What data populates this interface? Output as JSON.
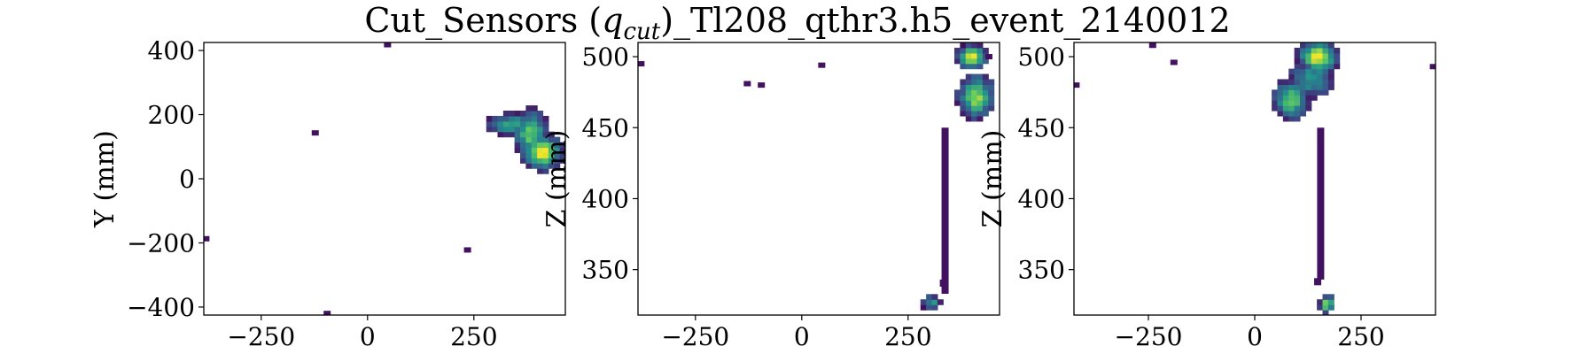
{
  "figure": {
    "title": "Cut_Sensors ($q_{cut}$)_Tl208_qthr3.h5_event_2140012",
    "title_prefix": "Cut_Sensors (",
    "title_math": "q",
    "title_sub": "cut",
    "title_suffix": ")_Tl208_qthr3.h5_event_2140012"
  },
  "colormap": [
    "#440154",
    "#3b528b",
    "#21918c",
    "#5ec962",
    "#fde725"
  ],
  "chart_data": [
    {
      "type": "heatmap",
      "title": "",
      "xlabel": "",
      "ylabel": "Y (mm)",
      "xlim": [
        -385,
        465
      ],
      "ylim": [
        -425,
        425
      ],
      "xticks": [
        -250,
        0,
        250
      ],
      "yticks": [
        -400,
        -200,
        0,
        200,
        400
      ],
      "xtick_labels": [
        "−250",
        "0",
        "250"
      ],
      "ytick_labels": [
        "−400",
        "−200",
        "0",
        "200",
        "400"
      ],
      "blobs": [
        {
          "x": 340,
          "y": 170,
          "rx": 55,
          "ry": 30,
          "peak": 0.6
        },
        {
          "x": 385,
          "y": 140,
          "rx": 35,
          "ry": 65,
          "peak": 0.75
        },
        {
          "x": 410,
          "y": 85,
          "rx": 40,
          "ry": 45,
          "peak": 1.0
        }
      ],
      "points": [
        {
          "x": 47,
          "y": 418,
          "v": 0.05
        },
        {
          "x": -123,
          "y": 143,
          "v": 0.05
        },
        {
          "x": -380,
          "y": -187,
          "v": 0.05
        },
        {
          "x": 235,
          "y": -222,
          "v": 0.05
        },
        {
          "x": -95,
          "y": -420,
          "v": 0.05
        }
      ]
    },
    {
      "type": "heatmap",
      "title": "",
      "xlabel": "",
      "ylabel": "Z (mm)",
      "xlim": [
        -385,
        465
      ],
      "ylim": [
        318,
        510
      ],
      "xticks": [
        -250,
        0,
        250
      ],
      "yticks": [
        350,
        400,
        450,
        500
      ],
      "xtick_labels": [
        "−250",
        "0",
        "250"
      ],
      "ytick_labels": [
        "350",
        "400",
        "450",
        "500"
      ],
      "blobs": [
        {
          "x": 400,
          "y": 500,
          "rx": 30,
          "ry": 7,
          "peak": 1.0
        },
        {
          "x": 410,
          "y": 472,
          "rx": 35,
          "ry": 13,
          "peak": 0.85
        },
        {
          "x": 305,
          "y": 327,
          "rx": 22,
          "ry": 5,
          "peak": 0.5
        }
      ],
      "points": [
        {
          "x": -378,
          "y": 495,
          "v": 0.05
        },
        {
          "x": -128,
          "y": 481,
          "v": 0.05
        },
        {
          "x": -95,
          "y": 480,
          "v": 0.05
        },
        {
          "x": 47,
          "y": 494,
          "v": 0.05
        },
        {
          "x": 440,
          "y": 500,
          "v": 0.05
        }
      ],
      "segments": [
        {
          "x": 337,
          "y0": 333,
          "y1": 450,
          "v": 0.05
        },
        {
          "x": 333,
          "y0": 338,
          "y1": 343,
          "v": 0.05
        }
      ]
    },
    {
      "type": "heatmap",
      "title": "",
      "xlabel": "",
      "ylabel": "Z (mm)",
      "xlim": [
        -425,
        425
      ],
      "ylim": [
        318,
        510
      ],
      "xticks": [
        -250,
        0,
        250
      ],
      "yticks": [
        350,
        400,
        450,
        500
      ],
      "xtick_labels": [
        "−250",
        "0",
        "250"
      ],
      "ytick_labels": [
        "350",
        "400",
        "450",
        "500"
      ],
      "blobs": [
        {
          "x": 150,
          "y": 500,
          "rx": 40,
          "ry": 9,
          "peak": 1.0
        },
        {
          "x": 135,
          "y": 485,
          "rx": 45,
          "ry": 12,
          "peak": 0.55
        },
        {
          "x": 85,
          "y": 470,
          "rx": 35,
          "ry": 12,
          "peak": 0.75
        },
        {
          "x": 170,
          "y": 326,
          "rx": 16,
          "ry": 5,
          "peak": 0.85
        }
      ],
      "points": [
        {
          "x": -420,
          "y": 480,
          "v": 0.05
        },
        {
          "x": -240,
          "y": 508,
          "v": 0.05
        },
        {
          "x": -190,
          "y": 496,
          "v": 0.05
        },
        {
          "x": 420,
          "y": 493,
          "v": 0.05
        }
      ],
      "segments": [
        {
          "x": 155,
          "y0": 343,
          "y1": 450,
          "v": 0.05
        },
        {
          "x": 148,
          "y0": 339,
          "y1": 344,
          "v": 0.05
        }
      ]
    }
  ]
}
